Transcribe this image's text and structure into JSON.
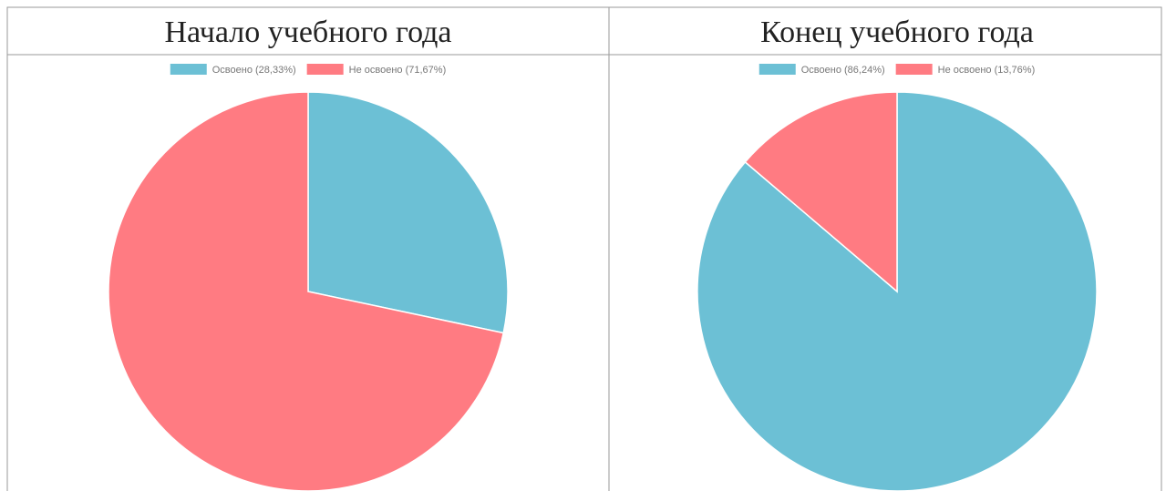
{
  "chart_data": [
    {
      "type": "pie",
      "title": "Начало учебного года",
      "categories": [
        "Освоено (28,33%)",
        "Не освоено (71,67%)"
      ],
      "values": [
        28.33,
        71.67
      ],
      "colors": [
        "#6cc0d5",
        "#ff7b82"
      ]
    },
    {
      "type": "pie",
      "title": "Конец учебного года",
      "categories": [
        "Освоено (86,24%)",
        "Не освоено (13,76%)"
      ],
      "values": [
        86.24,
        13.76
      ],
      "colors": [
        "#6cc0d5",
        "#ff7b82"
      ]
    }
  ]
}
